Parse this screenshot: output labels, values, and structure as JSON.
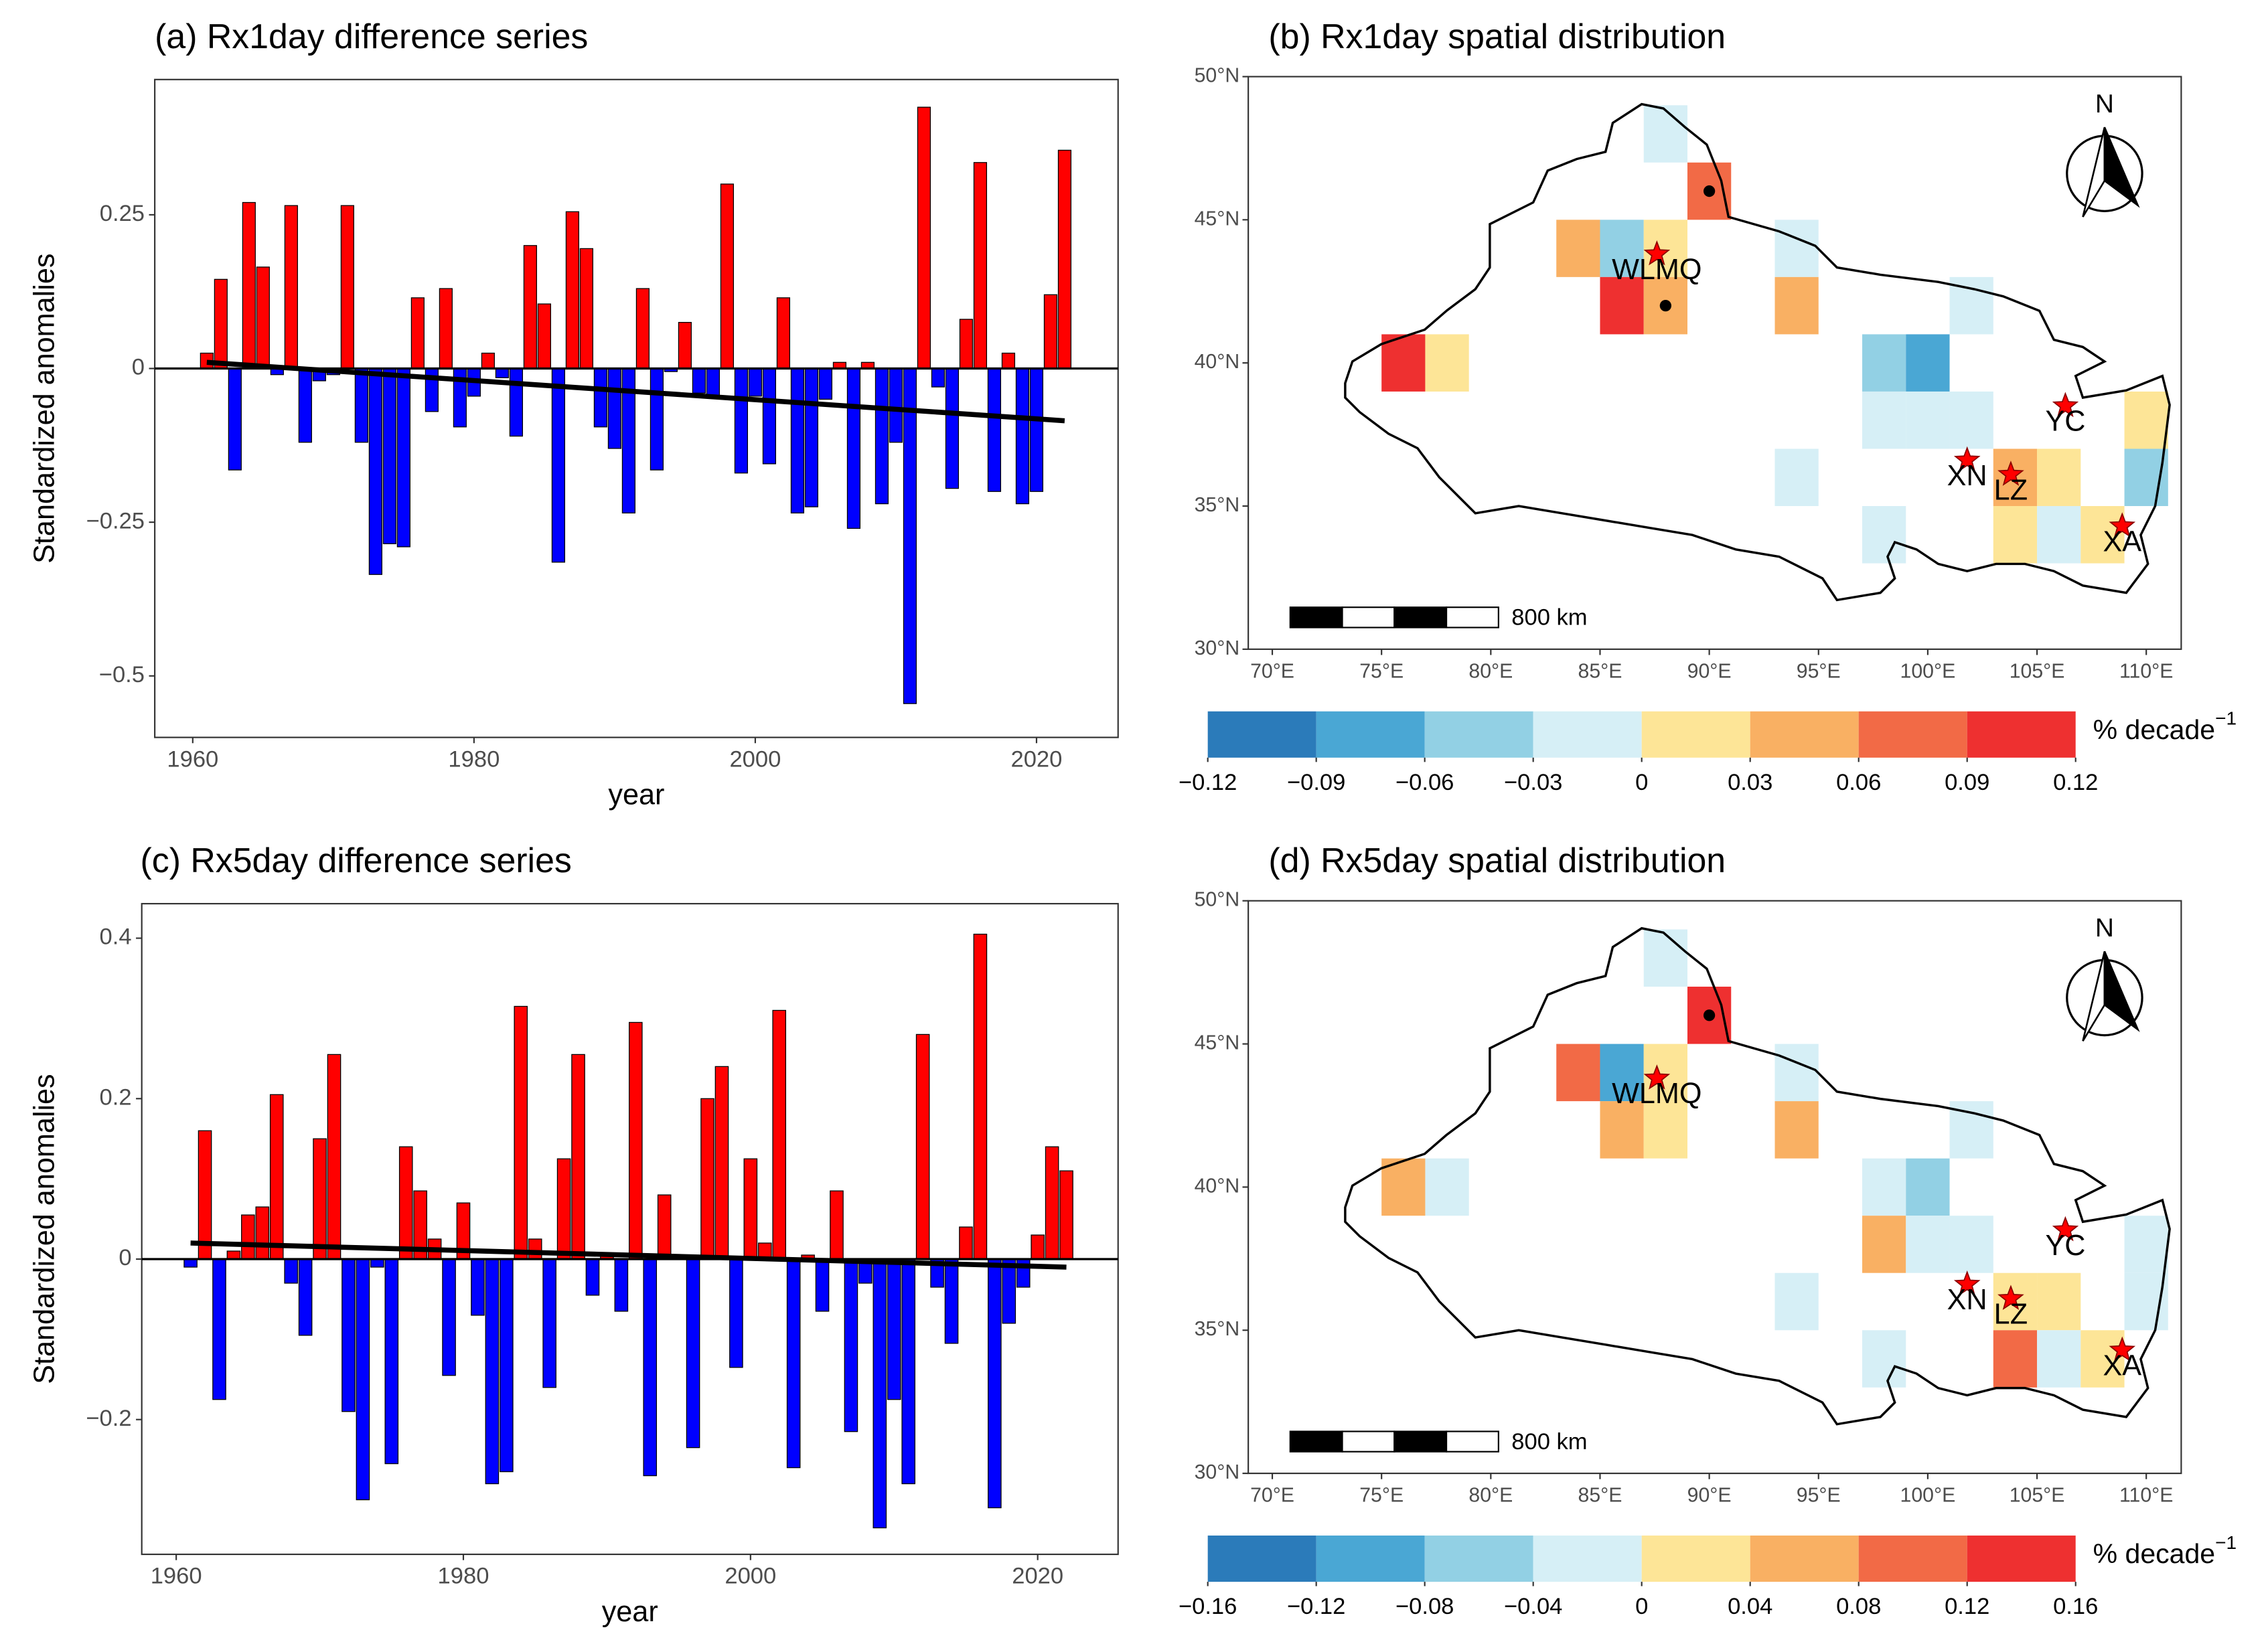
{
  "chart_data": [
    {
      "type": "bar",
      "title": "(a) Rx1day difference series",
      "xlabel": "year",
      "ylabel": "Standardized anomalies",
      "x": [
        1961,
        1962,
        1963,
        1964,
        1965,
        1966,
        1967,
        1968,
        1969,
        1970,
        1971,
        1972,
        1973,
        1974,
        1975,
        1976,
        1977,
        1978,
        1979,
        1980,
        1981,
        1982,
        1983,
        1984,
        1985,
        1986,
        1987,
        1988,
        1989,
        1990,
        1991,
        1992,
        1993,
        1994,
        1995,
        1996,
        1997,
        1998,
        1999,
        2000,
        2001,
        2002,
        2003,
        2004,
        2005,
        2006,
        2007,
        2008,
        2009,
        2010,
        2011,
        2012,
        2013,
        2014,
        2015,
        2016,
        2017,
        2018,
        2019,
        2020,
        2021,
        2022
      ],
      "values": [
        0.025,
        0.145,
        -0.165,
        0.27,
        0.165,
        -0.01,
        0.265,
        -0.12,
        -0.02,
        -0.01,
        0.265,
        -0.12,
        -0.335,
        -0.285,
        -0.29,
        0.115,
        -0.07,
        0.13,
        -0.095,
        -0.045,
        0.025,
        -0.015,
        -0.11,
        0.2,
        0.105,
        -0.315,
        0.255,
        0.195,
        -0.095,
        -0.13,
        -0.235,
        0.13,
        -0.165,
        -0.005,
        0.075,
        -0.04,
        -0.045,
        0.3,
        -0.17,
        -0.045,
        -0.155,
        0.115,
        -0.235,
        -0.225,
        -0.05,
        0.01,
        -0.26,
        0.01,
        -0.22,
        -0.12,
        -0.545,
        0.425,
        -0.03,
        -0.195,
        0.08,
        0.335,
        -0.2,
        0.025,
        -0.22,
        -0.2,
        0.12,
        0.355
      ],
      "colors": {
        "positive": "#ff0000",
        "negative": "#0000ff"
      },
      "trend": {
        "x": [
          1961,
          2022
        ],
        "values": [
          0.01,
          -0.085
        ],
        "color": "#000000"
      },
      "xlim": [
        1957.3,
        2025.8
      ],
      "xticks": [
        1960,
        1980,
        2000,
        2020
      ],
      "ylim": [
        -0.6,
        0.47
      ],
      "yticks": [
        {
          "value": -0.5,
          "label": "−0.5"
        },
        {
          "value": -0.25,
          "label": "−0.25"
        },
        0,
        0.25
      ]
    },
    {
      "type": "map",
      "title": "(b) Rx1day spatial distribution",
      "lon": [
        88,
        90,
        84,
        86,
        88,
        86,
        88,
        94,
        94,
        76,
        78,
        98,
        100,
        102,
        98,
        100,
        102,
        110,
        104,
        106,
        110,
        94,
        98,
        104,
        106,
        108
      ],
      "lat": [
        48,
        46,
        44,
        44,
        44,
        42,
        42,
        44,
        42,
        40,
        40,
        40,
        40,
        42,
        38,
        38,
        38,
        38,
        36,
        36,
        36,
        36,
        34,
        34,
        34,
        34
      ],
      "values": [
        -0.015,
        0.075,
        0.045,
        -0.045,
        0.015,
        0.105,
        0.045,
        -0.015,
        0.045,
        0.105,
        0.015,
        -0.045,
        -0.075,
        -0.015,
        -0.015,
        -0.015,
        -0.015,
        0.015,
        0.045,
        0.015,
        -0.045,
        -0.015,
        -0.015,
        0.015,
        -0.015,
        0.015
      ],
      "colorbar": {
        "label": "% decade",
        "label_sup": "−1",
        "breaks": [
          {
            "value": -0.12,
            "label": "−0.12"
          },
          {
            "value": -0.09,
            "label": "−0.09"
          },
          {
            "value": -0.06,
            "label": "−0.06"
          },
          {
            "value": -0.03,
            "label": "−0.03"
          },
          0,
          0.03,
          0.06,
          0.09,
          0.12
        ],
        "colors": [
          "#2b7bba",
          "#4aa7d4",
          "#92d0e4",
          "#d6eff6",
          "#fde597",
          "#f9b063",
          "#f26a46",
          "#ee3030"
        ]
      },
      "stations": {
        "names": [
          "WLMQ",
          "YC",
          "XN",
          "LZ",
          "XA"
        ],
        "lon": [
          87.6,
          106.3,
          101.8,
          103.8,
          108.9
        ],
        "lat": [
          43.8,
          38.5,
          36.6,
          36.1,
          34.3
        ]
      },
      "dots": {
        "lon": [
          90,
          88
        ],
        "lat": [
          46,
          42
        ]
      },
      "scalebar": "800 km",
      "north": "N",
      "xlim": [
        68.9,
        111.6
      ],
      "xticks": [
        {
          "value": 70,
          "label": "70°E"
        },
        {
          "value": 75,
          "label": "75°E"
        },
        {
          "value": 80,
          "label": "80°E"
        },
        {
          "value": 85,
          "label": "85°E"
        },
        {
          "value": 90,
          "label": "90°E"
        },
        {
          "value": 95,
          "label": "95°E"
        },
        {
          "value": 100,
          "label": "100°E"
        },
        {
          "value": 105,
          "label": "105°E"
        },
        {
          "value": 110,
          "label": "110°E"
        }
      ],
      "ylim": [
        30,
        50
      ],
      "yticks": [
        {
          "value": 30,
          "label": "30°N"
        },
        {
          "value": 35,
          "label": "35°N"
        },
        {
          "value": 40,
          "label": "40°N"
        },
        {
          "value": 45,
          "label": "45°N"
        },
        {
          "value": 50,
          "label": "50°N"
        }
      ]
    },
    {
      "type": "bar",
      "title": "(c) Rx5day difference series",
      "xlabel": "year",
      "ylabel": "Standardized anomalies",
      "x": [
        1961,
        1962,
        1963,
        1964,
        1965,
        1966,
        1967,
        1968,
        1969,
        1970,
        1971,
        1972,
        1973,
        1974,
        1975,
        1976,
        1977,
        1978,
        1979,
        1980,
        1981,
        1982,
        1983,
        1984,
        1985,
        1986,
        1987,
        1988,
        1989,
        1990,
        1991,
        1992,
        1993,
        1994,
        1995,
        1996,
        1997,
        1998,
        1999,
        2000,
        2001,
        2002,
        2003,
        2004,
        2005,
        2006,
        2007,
        2008,
        2009,
        2010,
        2011,
        2012,
        2013,
        2014,
        2015,
        2016,
        2017,
        2018,
        2019,
        2020,
        2021,
        2022
      ],
      "values": [
        -0.01,
        0.16,
        -0.175,
        0.01,
        0.055,
        0.065,
        0.205,
        -0.03,
        -0.095,
        0.15,
        0.255,
        -0.19,
        -0.3,
        -0.01,
        -0.255,
        0.14,
        0.085,
        0.025,
        -0.145,
        0.07,
        -0.07,
        -0.28,
        -0.265,
        0.315,
        0.025,
        -0.16,
        0.125,
        0.255,
        -0.045,
        0.005,
        -0.065,
        0.295,
        -0.27,
        0.08,
        0.005,
        -0.235,
        0.2,
        0.24,
        -0.135,
        0.125,
        0.02,
        0.31,
        -0.26,
        0.005,
        -0.065,
        0.085,
        -0.215,
        -0.03,
        -0.335,
        -0.175,
        -0.28,
        0.28,
        -0.035,
        -0.105,
        0.04,
        0.405,
        -0.31,
        -0.08,
        -0.035,
        0.03,
        0.14,
        0.11
      ],
      "colors": {
        "positive": "#ff0000",
        "negative": "#0000ff"
      },
      "trend": {
        "x": [
          1961,
          2022
        ],
        "values": [
          0.02,
          -0.01
        ],
        "color": "#000000"
      },
      "xlim": [
        1957.6,
        2025.6
      ],
      "xticks": [
        1960,
        1980,
        2000,
        2020
      ],
      "ylim": [
        -0.368,
        0.443
      ],
      "yticks": [
        {
          "value": -0.2,
          "label": "−0.2"
        },
        0,
        0.2,
        0.4
      ]
    },
    {
      "type": "map",
      "title": "(d) Rx5day spatial distribution",
      "lon": [
        88,
        90,
        84,
        86,
        88,
        86,
        88,
        94,
        94,
        76,
        78,
        98,
        100,
        102,
        98,
        100,
        102,
        110,
        104,
        106,
        110,
        94,
        98,
        104,
        106,
        108
      ],
      "lat": [
        48,
        46,
        44,
        44,
        44,
        42,
        42,
        44,
        42,
        40,
        40,
        40,
        40,
        42,
        38,
        38,
        38,
        38,
        36,
        36,
        36,
        36,
        34,
        34,
        34,
        34
      ],
      "values": [
        -0.02,
        0.14,
        0.1,
        -0.1,
        0.02,
        0.06,
        0.02,
        -0.02,
        0.06,
        0.06,
        -0.02,
        -0.02,
        -0.06,
        -0.02,
        0.06,
        -0.02,
        -0.02,
        -0.02,
        0.02,
        0.02,
        -0.02,
        -0.02,
        -0.02,
        0.1,
        -0.02,
        0.02
      ],
      "colorbar": {
        "label": "% decade",
        "label_sup": "−1",
        "breaks": [
          {
            "value": -0.16,
            "label": "−0.16"
          },
          {
            "value": -0.12,
            "label": "−0.12"
          },
          {
            "value": -0.08,
            "label": "−0.08"
          },
          {
            "value": -0.04,
            "label": "−0.04"
          },
          0,
          0.04,
          0.08,
          0.12,
          0.16
        ],
        "colors": [
          "#2b7bba",
          "#4aa7d4",
          "#92d0e4",
          "#d6eff6",
          "#fde597",
          "#f9b063",
          "#f26a46",
          "#ee3030"
        ]
      },
      "stations": {
        "names": [
          "WLMQ",
          "YC",
          "XN",
          "LZ",
          "XA"
        ],
        "lon": [
          87.6,
          106.3,
          101.8,
          103.8,
          108.9
        ],
        "lat": [
          43.8,
          38.5,
          36.6,
          36.1,
          34.3
        ]
      },
      "dots": {
        "lon": [
          90
        ],
        "lat": [
          46
        ]
      },
      "scalebar": "800 km",
      "north": "N",
      "xlim": [
        68.9,
        111.6
      ],
      "xticks": [
        {
          "value": 70,
          "label": "70°E"
        },
        {
          "value": 75,
          "label": "75°E"
        },
        {
          "value": 80,
          "label": "80°E"
        },
        {
          "value": 85,
          "label": "85°E"
        },
        {
          "value": 90,
          "label": "90°E"
        },
        {
          "value": 95,
          "label": "95°E"
        },
        {
          "value": 100,
          "label": "100°E"
        },
        {
          "value": 105,
          "label": "105°E"
        },
        {
          "value": 110,
          "label": "110°E"
        }
      ],
      "ylim": [
        30,
        50
      ],
      "yticks": [
        {
          "value": 30,
          "label": "30°N"
        },
        {
          "value": 35,
          "label": "35°N"
        },
        {
          "value": 40,
          "label": "40°N"
        },
        {
          "value": 45,
          "label": "45°N"
        },
        {
          "value": 50,
          "label": "50°N"
        }
      ]
    }
  ]
}
